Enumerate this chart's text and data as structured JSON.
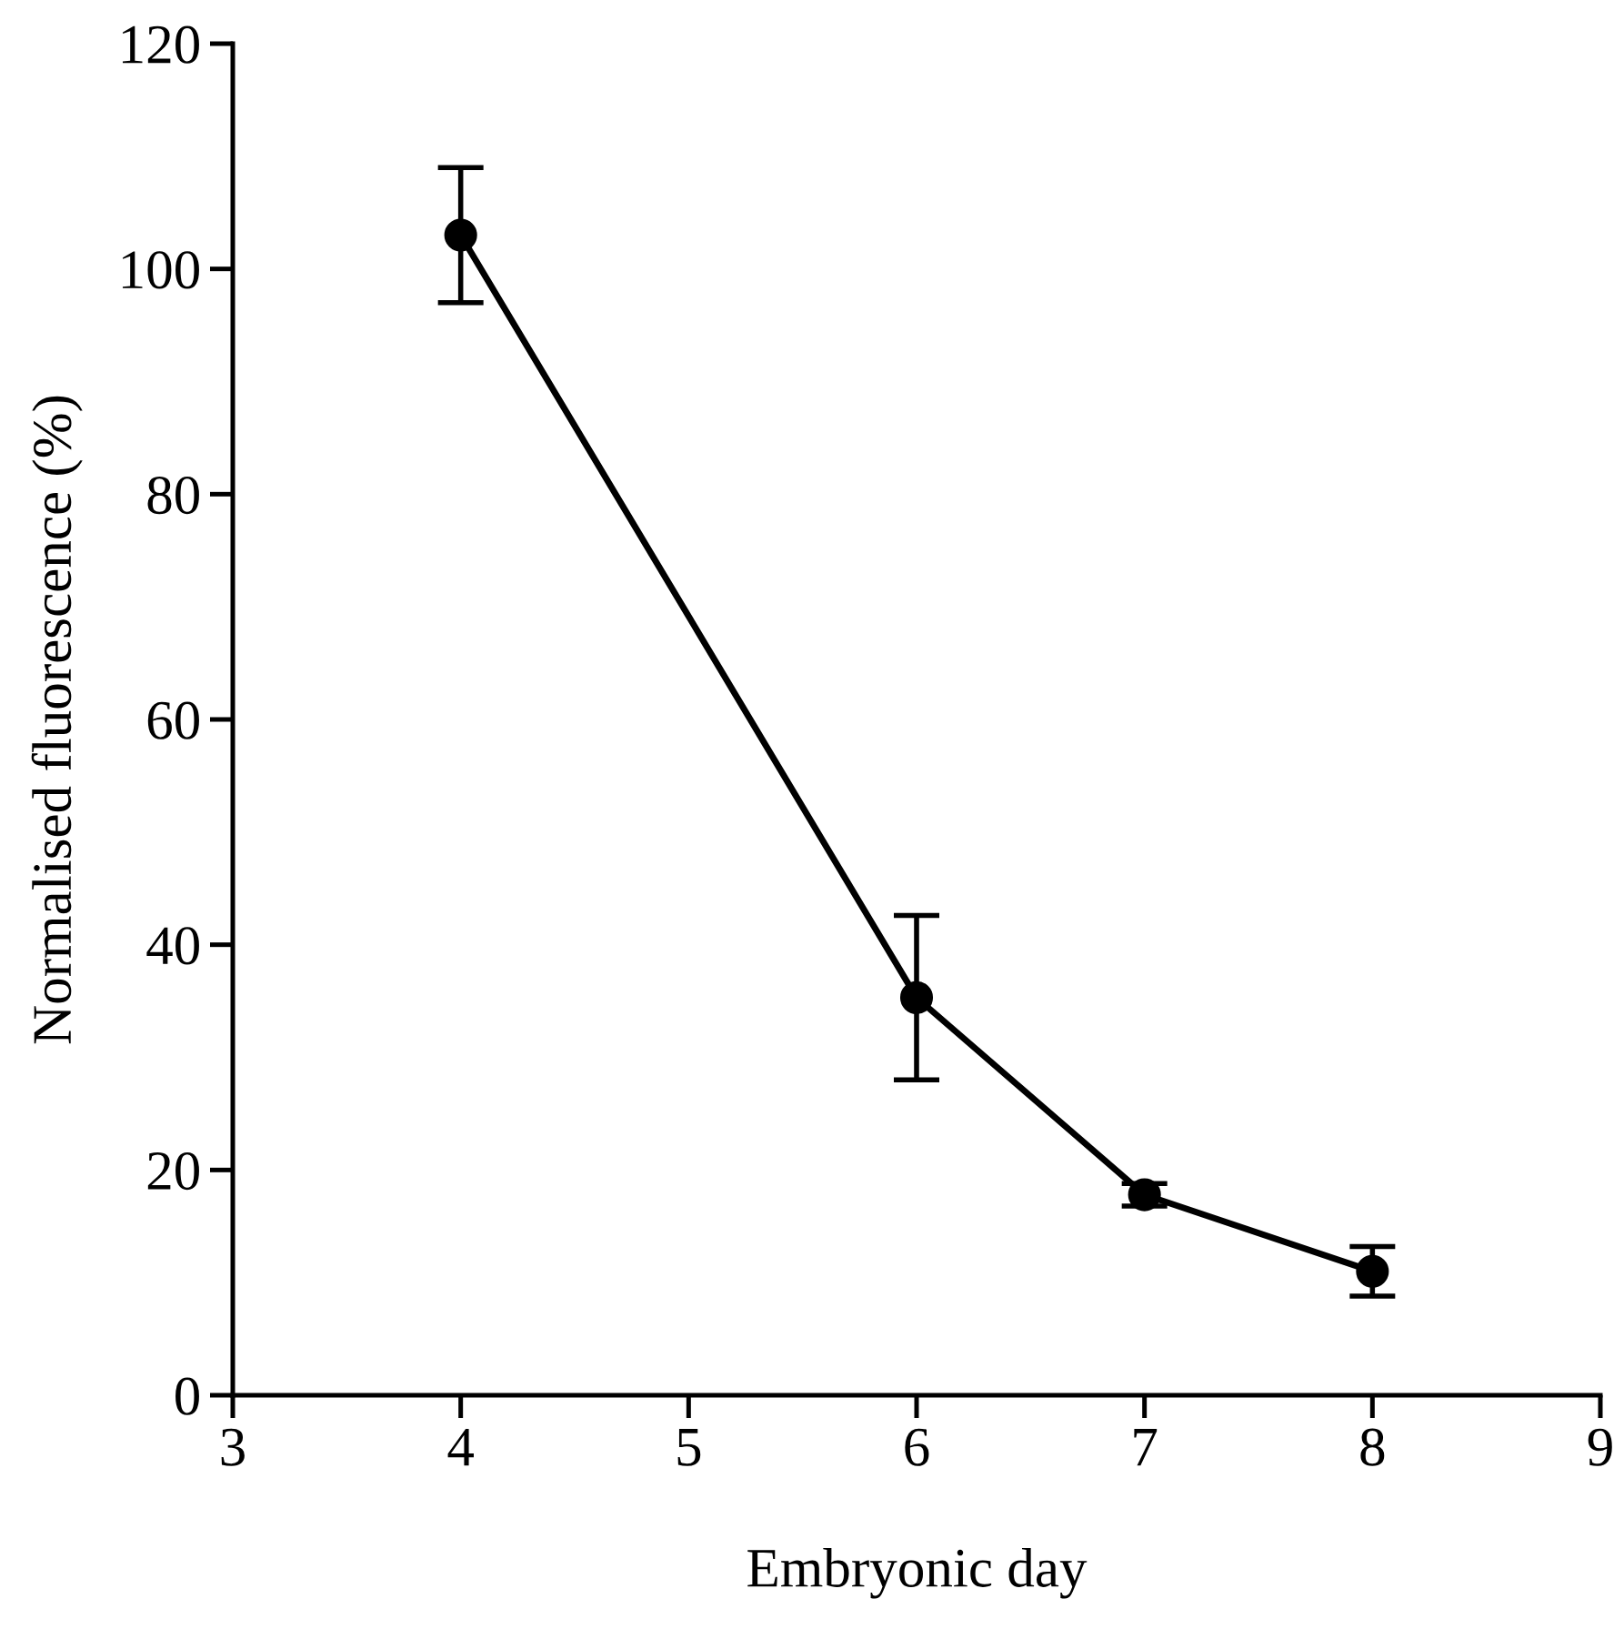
{
  "chart_data": {
    "type": "line",
    "xlabel": "Embryonic day",
    "ylabel": "Normalised fluorescence (%)",
    "x": [
      4,
      6,
      7,
      8
    ],
    "series": [
      {
        "color": "#000000",
        "values": [
          103,
          35.3,
          17.8,
          11
        ],
        "errors": [
          6,
          7.3,
          1,
          2.2
        ]
      }
    ],
    "xlim": [
      3,
      9
    ],
    "xticks": [
      3,
      4,
      5,
      6,
      7,
      8,
      9
    ],
    "ylim": [
      0,
      120
    ],
    "yticks": [
      0,
      20,
      40,
      60,
      80,
      100,
      120
    ],
    "grid": false,
    "marker": "circle",
    "line_style": "solid"
  }
}
